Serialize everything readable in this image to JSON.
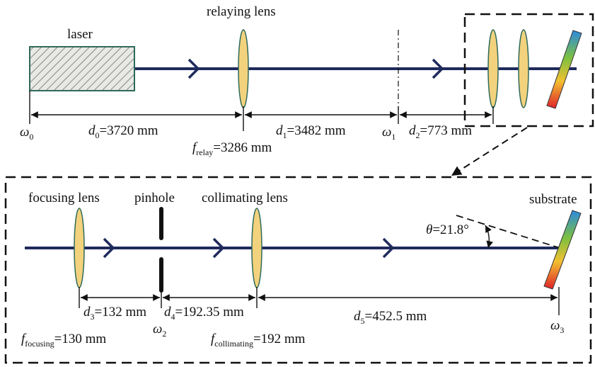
{
  "top": {
    "laser": "laser",
    "relaying_lens": "relaying lens",
    "omega0": {
      "sym": "ω",
      "sub": "0"
    },
    "d0": {
      "sym": "d",
      "sub": "0",
      "rest": "=3720 mm"
    },
    "d1": {
      "sym": "d",
      "sub": "1",
      "rest": "=3482 mm"
    },
    "omega1": {
      "sym": "ω",
      "sub": "1"
    },
    "d2": {
      "sym": "d",
      "sub": "2",
      "rest": "=773 mm"
    },
    "f_relay": {
      "sym": "f",
      "sub": "relay",
      "rest": "=3286 mm"
    }
  },
  "bottom": {
    "focusing_lens": "focusing lens",
    "pinhole": "pinhole",
    "collimating_lens": "collimating lens",
    "substrate": "substrate",
    "theta": {
      "sym": "θ",
      "rest": "=21.8°"
    },
    "d3": {
      "sym": "d",
      "sub": "3",
      "rest": "=132 mm"
    },
    "d4": {
      "sym": "d",
      "sub": "4",
      "rest": "=192.35 mm"
    },
    "d5": {
      "sym": "d",
      "sub": "5",
      "rest": "=452.5 mm"
    },
    "omega2": {
      "sym": "ω",
      "sub": "2"
    },
    "omega3": {
      "sym": "ω",
      "sub": "3"
    },
    "f_focusing": {
      "sym": "f",
      "sub": "focusing",
      "rest": "=130 mm"
    },
    "f_collimating": {
      "sym": "f",
      "sub": "collimating",
      "rest": "=192 mm"
    }
  }
}
